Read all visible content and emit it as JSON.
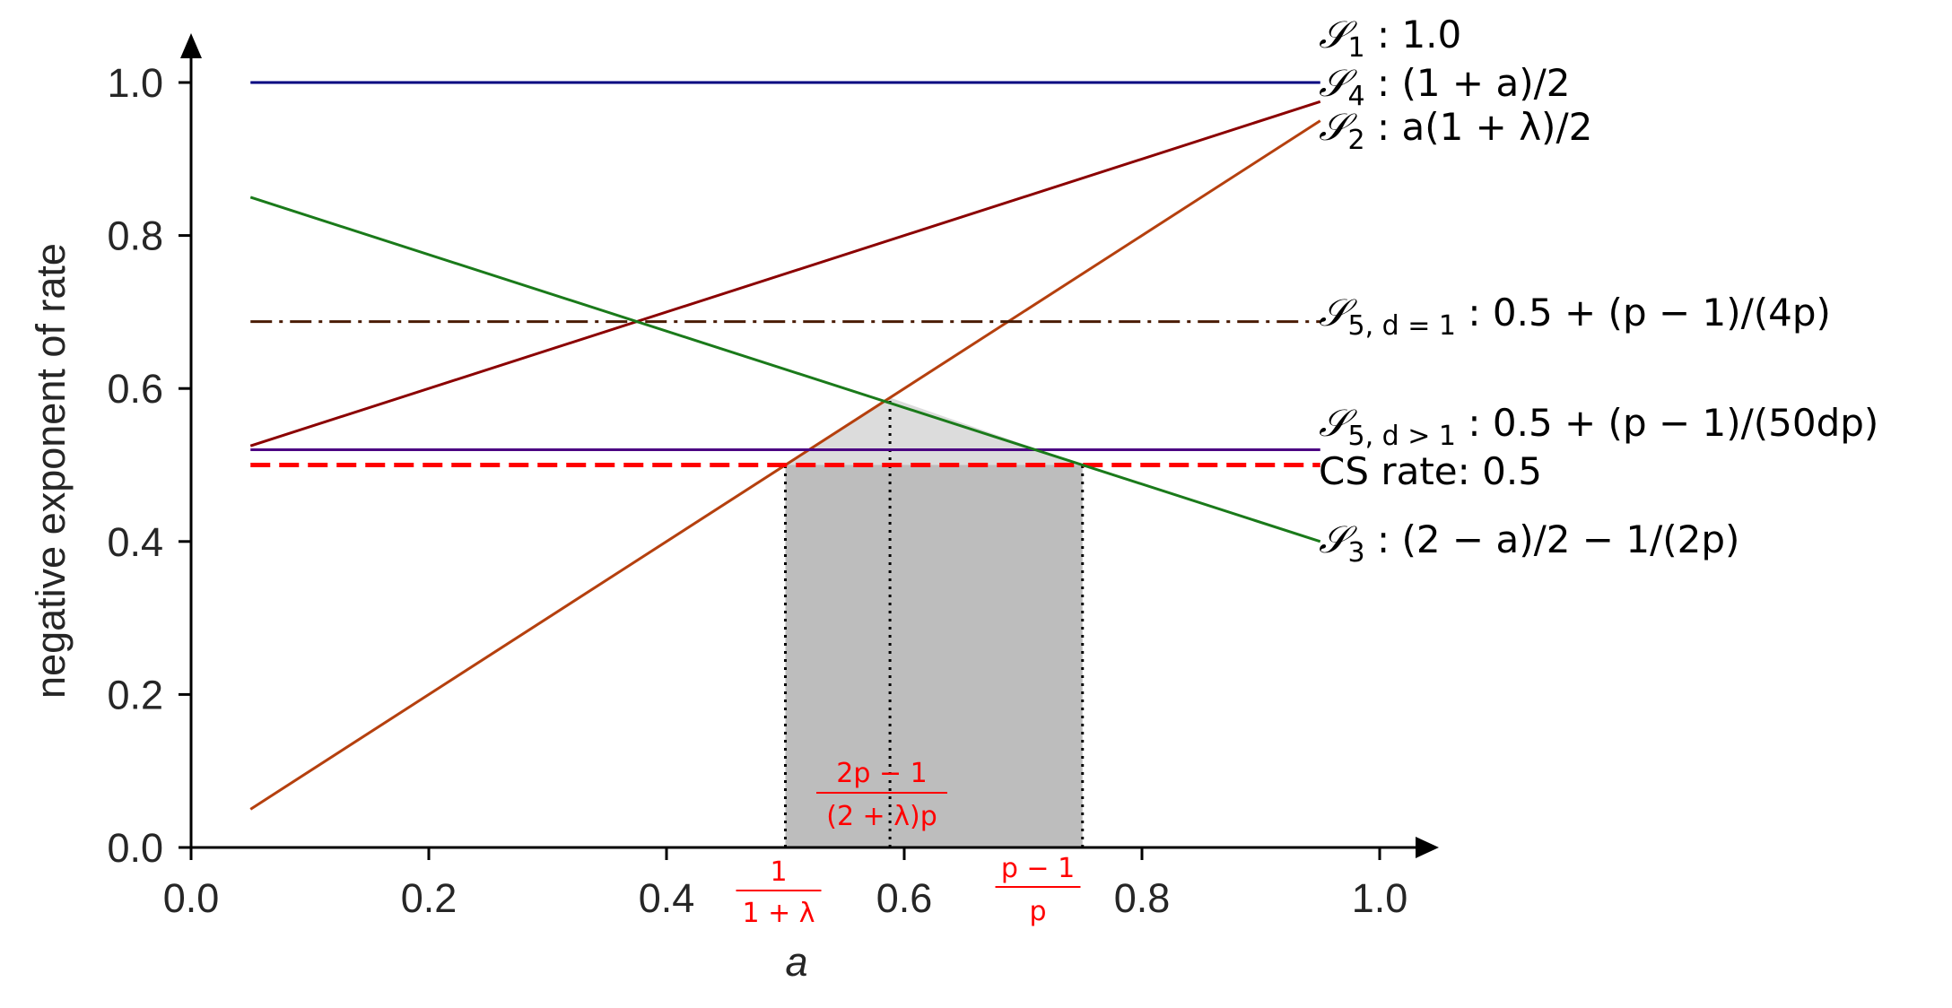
{
  "chart_data": {
    "type": "line",
    "xlabel": "a",
    "ylabel": "negative exponent of rate",
    "xlim": [
      0.0,
      1.0
    ],
    "ylim": [
      0.0,
      1.0
    ],
    "x_ticks": [
      "0.0",
      "0.2",
      "0.4",
      "0.6",
      "0.8",
      "1.0"
    ],
    "y_ticks": [
      "0.0",
      "0.2",
      "0.4",
      "0.6",
      "0.8",
      "1.0"
    ],
    "grid": false,
    "series": [
      {
        "name": "S1 : 1.0",
        "label_parts": [
          "𝒮",
          "1",
          " : 1.0"
        ],
        "color": "#000080",
        "dash": "solid",
        "x": [
          0.05,
          0.95
        ],
        "y": [
          1.0,
          1.0
        ]
      },
      {
        "name": "S4 : (1 + a)/2",
        "label_parts": [
          "𝒮",
          "4",
          " : (1 + a)/2"
        ],
        "color": "#8b0000",
        "dash": "solid",
        "x": [
          0.05,
          0.95
        ],
        "y": [
          0.525,
          0.975
        ]
      },
      {
        "name": "S2 : a(1 + λ)/2",
        "label_parts": [
          "𝒮",
          "2",
          " : a(1 + λ)/2"
        ],
        "color": "#b5400e",
        "dash": "solid",
        "x": [
          0.05,
          0.95
        ],
        "y": [
          0.05,
          0.95
        ]
      },
      {
        "name": "S5, d = 1 : 0.5 + (p − 1)/(4p)",
        "label_parts": [
          "𝒮",
          "5, d = 1",
          " : 0.5 + (p − 1)/(4p)"
        ],
        "color": "#4a1c04",
        "dash": "dashdot",
        "x": [
          0.05,
          0.95
        ],
        "y": [
          0.6875,
          0.6875
        ]
      },
      {
        "name": "S5, d > 1 : 0.5 + (p − 1)/(50dp)",
        "label_parts": [
          "𝒮",
          "5, d > 1",
          " : 0.5 + (p − 1)/(50dp)"
        ],
        "color": "#4b0082",
        "dash": "solid",
        "x": [
          0.05,
          0.95
        ],
        "y": [
          0.52,
          0.52
        ]
      },
      {
        "name": "CS rate: 0.5",
        "label_parts": [
          "",
          "",
          "CS rate: 0.5"
        ],
        "color": "#ff0000",
        "dash": "dashed",
        "x": [
          0.05,
          0.95
        ],
        "y": [
          0.5,
          0.5
        ]
      },
      {
        "name": "S3 : (2 − a)/2 − 1/(2p)",
        "label_parts": [
          "𝒮",
          "3",
          " : (2 − a)/2 − 1/(2p)"
        ],
        "color": "#1a7a1a",
        "dash": "solid",
        "x": [
          0.05,
          0.95
        ],
        "y": [
          0.85,
          0.4
        ]
      }
    ],
    "shaded_region": {
      "x": [
        0.5,
        0.5,
        0.588,
        0.75,
        0.75
      ],
      "y": [
        0.0,
        0.5,
        0.5,
        0.5,
        0.0
      ],
      "color": "#bdbdbd"
    },
    "light_triangle": {
      "x": [
        0.5,
        0.588,
        0.75
      ],
      "y": [
        0.5,
        0.588,
        0.5
      ],
      "color": "#dcdcdc"
    },
    "vertical_markers": [
      {
        "x": 0.5,
        "y": 0.5,
        "label_num": "1",
        "label_den": "1 + λ"
      },
      {
        "x": 0.588,
        "y": 0.588,
        "label_num": "2p − 1",
        "label_den": "(2 + λ)p"
      },
      {
        "x": 0.75,
        "y": 0.5,
        "label_num": "p − 1",
        "label_den": "p"
      }
    ]
  }
}
